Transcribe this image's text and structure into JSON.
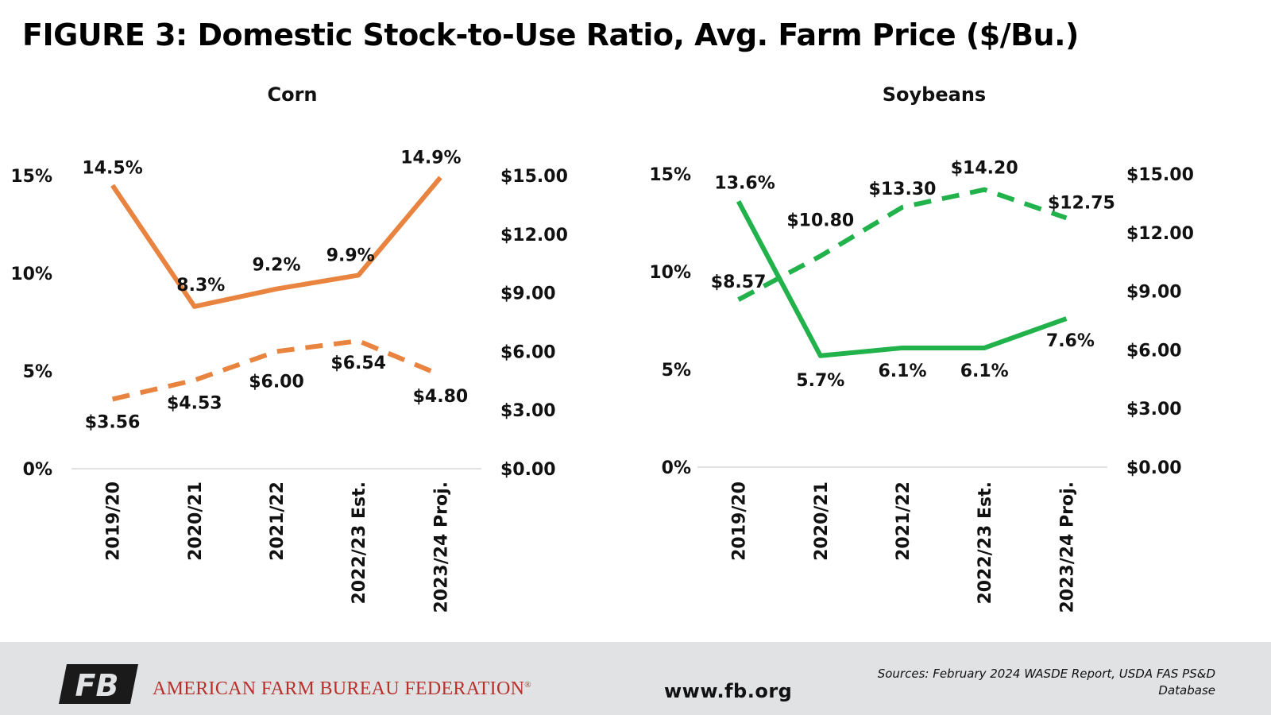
{
  "title": "FIGURE 3: Domestic Stock-to-Use Ratio, Avg. Farm Price ($/Bu.)",
  "footer": {
    "org_name": "AMERICAN FARM BUREAU FEDERATION",
    "org_reg": "®",
    "logo_text": "FB",
    "website": "www.fb.org",
    "sources": "Sources: February 2024 WASDE Report, USDA FAS PS&D Database"
  },
  "colors": {
    "corn": "#e8843f",
    "soybeans": "#21b24b",
    "footer_bg": "#e1e2e4",
    "brand_red": "#b7312c",
    "gridline": "#d9d9d9"
  },
  "chart_data": [
    {
      "type": "line",
      "title": "Corn",
      "categories": [
        "2019/20",
        "2020/21",
        "2021/22",
        "2022/23 Est.",
        "2023/24 Proj."
      ],
      "y_left": {
        "ticks": [
          "0%",
          "5%",
          "10%",
          "15%"
        ],
        "range": [
          0,
          15
        ]
      },
      "y_right": {
        "ticks": [
          "$0.00",
          "$3.00",
          "$6.00",
          "$9.00",
          "$12.00",
          "$15.00"
        ],
        "range": [
          0,
          15
        ]
      },
      "grid": false,
      "series": [
        {
          "axis": "left",
          "style": "solid",
          "values": [
            14.5,
            8.3,
            9.2,
            9.9,
            14.9
          ],
          "labels": [
            "14.5%",
            "8.3%",
            "9.2%",
            "9.9%",
            "14.9%"
          ]
        },
        {
          "axis": "right",
          "style": "dashed",
          "values": [
            3.56,
            4.53,
            6.0,
            6.54,
            4.8
          ],
          "labels": [
            "$3.56",
            "$4.53",
            "$6.00",
            "$6.54",
            "$4.80"
          ]
        }
      ]
    },
    {
      "type": "line",
      "title": "Soybeans",
      "categories": [
        "2019/20",
        "2020/21",
        "2021/22",
        "2022/23 Est.",
        "2023/24 Proj."
      ],
      "y_left": {
        "ticks": [
          "0%",
          "5%",
          "10%",
          "15%"
        ],
        "range": [
          0,
          15
        ]
      },
      "y_right": {
        "ticks": [
          "$0.00",
          "$3.00",
          "$6.00",
          "$9.00",
          "$12.00",
          "$15.00"
        ],
        "range": [
          0,
          15
        ]
      },
      "grid": false,
      "series": [
        {
          "axis": "left",
          "style": "solid",
          "values": [
            13.6,
            5.7,
            6.1,
            6.1,
            7.6
          ],
          "labels": [
            "13.6%",
            "5.7%",
            "6.1%",
            "6.1%",
            "7.6%"
          ]
        },
        {
          "axis": "right",
          "style": "dashed",
          "values": [
            8.57,
            10.8,
            13.3,
            14.2,
            12.75
          ],
          "labels": [
            "$8.57",
            "$10.80",
            "$13.30",
            "$14.20",
            "$12.75"
          ]
        }
      ]
    }
  ]
}
